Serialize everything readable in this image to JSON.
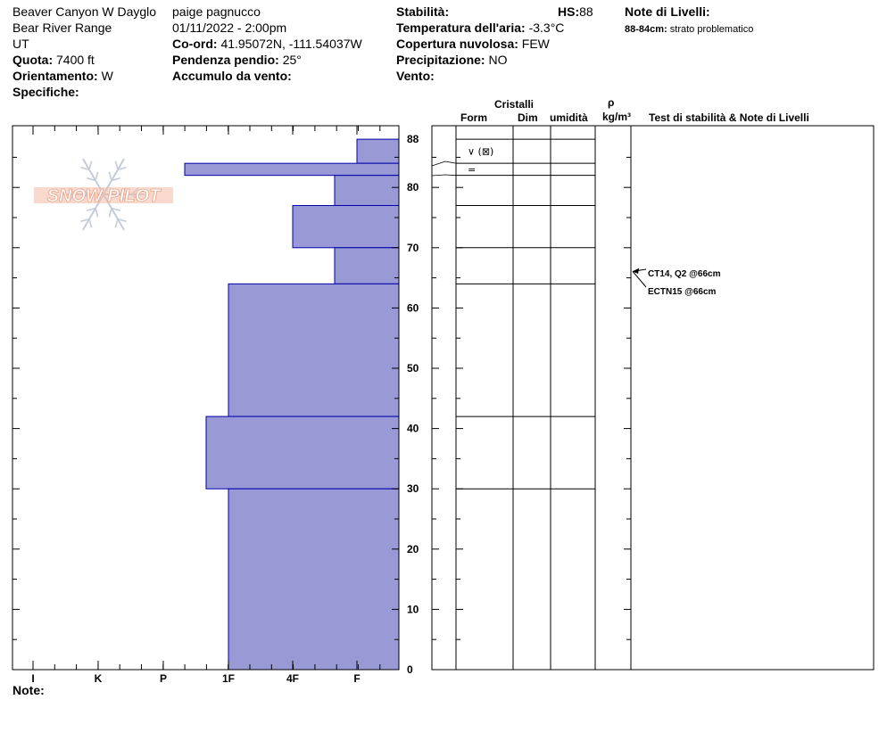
{
  "site": {
    "location": "Beaver Canyon W Dayglo",
    "range": "Bear River Range",
    "state": "UT",
    "elevation_label": "Quota:",
    "elevation": "7400 ft",
    "aspect_label": "Orientamento:",
    "aspect": "W",
    "specifics_label": "Specifiche:"
  },
  "observer": {
    "name": "paige pagnucco",
    "datetime": "01/11/2022 - 2:00pm",
    "coords_label": "Co-ord:",
    "coords": "41.95072N, -111.54037W",
    "slope_label": "Pendenza pendio:",
    "slope": "25°",
    "wind_loading_label": "Accumulo da vento:"
  },
  "conditions": {
    "stability_label": "Stabilità:",
    "hs_label": "HS:",
    "hs": "88",
    "air_temp_label": "Temperatura dell'aria:",
    "air_temp": "-3.3°C",
    "sky_label": "Copertura nuvolosa:",
    "sky": "FEW",
    "precip_label": "Precipitazione:",
    "precip": "NO",
    "wind_label": "Vento:"
  },
  "layer_notes": {
    "title": "Note di Livelli:",
    "range": "88-84cm:",
    "text": "strato problematico"
  },
  "columns": {
    "crystals": "Cristalli",
    "form": "Form",
    "size": "Dim",
    "moisture": "umidità",
    "rho": "ρ",
    "density_unit": "kg/m³",
    "tests": "Test di stabilità & Note di Livelli"
  },
  "footer": {
    "notes_label": "Note:"
  },
  "logo": {
    "text": "SNOW PILOT",
    "color": "#f4b9a4"
  },
  "colors": {
    "hardness_fill": "#9999d6",
    "layer_line": "#0000aa"
  },
  "chart_data": {
    "type": "bar",
    "title": "",
    "x_categories": [
      "I",
      "K",
      "P",
      "1F",
      "4F",
      "F"
    ],
    "y_axis_ticks": [
      0,
      10,
      20,
      30,
      40,
      50,
      60,
      70,
      80,
      88
    ],
    "ylim": [
      0,
      88
    ],
    "layers": [
      {
        "top": 88,
        "bottom": 84,
        "hardness": "F"
      },
      {
        "top": 84,
        "bottom": 82,
        "hardness": "P+"
      },
      {
        "top": 82,
        "bottom": 77,
        "hardness": "F+"
      },
      {
        "top": 77,
        "bottom": 70,
        "hardness": "4F"
      },
      {
        "top": 70,
        "bottom": 64,
        "hardness": "F+"
      },
      {
        "top": 64,
        "bottom": 42,
        "hardness": "1F"
      },
      {
        "top": 42,
        "bottom": 30,
        "hardness": "1F+"
      },
      {
        "top": 30,
        "bottom": 0,
        "hardness": "1F"
      }
    ],
    "crystals": [
      {
        "depth": 86,
        "form": "∨ (⊠)"
      },
      {
        "depth": 83,
        "form": "="
      }
    ],
    "tests": [
      {
        "depth": 66,
        "text": "CT14, Q2 @66cm"
      },
      {
        "depth": 66,
        "text": "ECTN15 @66cm"
      }
    ]
  }
}
